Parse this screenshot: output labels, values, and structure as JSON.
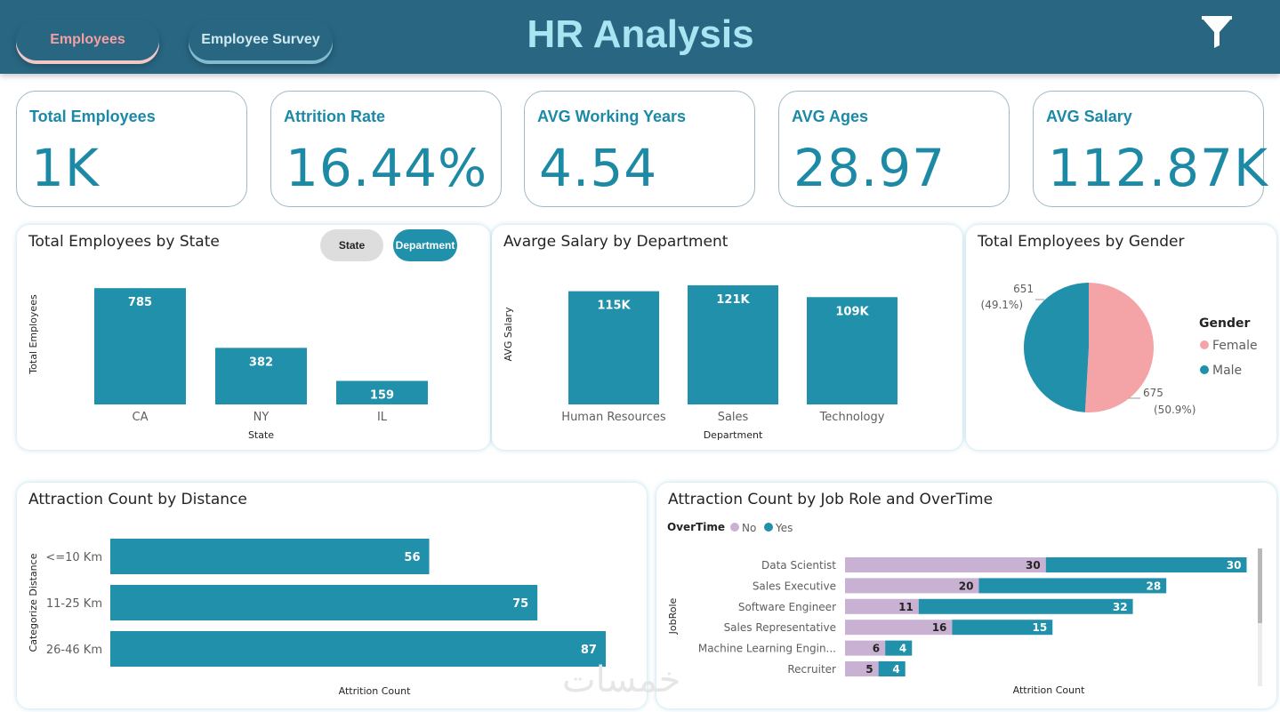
{
  "header": {
    "title": "HR Analysis",
    "nav": [
      {
        "label": "Employees",
        "active": true
      },
      {
        "label": "Employee Survey",
        "active": false
      }
    ],
    "filter_icon": "filter-icon"
  },
  "kpis": [
    {
      "title": "Total Employees",
      "value": "1K"
    },
    {
      "title": "Attrition Rate",
      "value": "16.44%"
    },
    {
      "title": "AVG Working Years",
      "value": "4.54"
    },
    {
      "title": "AVG Ages",
      "value": "28.97"
    },
    {
      "title": "AVG Salary",
      "value": "112.87K"
    }
  ],
  "toggles": {
    "state": "State",
    "department": "Department"
  },
  "colors": {
    "teal": "#2090ab",
    "lavender": "#c9b1d3",
    "pink": "#f4a4a6",
    "header": "#296682"
  },
  "chart_data": [
    {
      "type": "bar",
      "title": "Total Employees by State",
      "categories": [
        "CA",
        "NY",
        "IL"
      ],
      "values": [
        785,
        382,
        159
      ],
      "data_labels": [
        "785",
        "382",
        "159"
      ],
      "xlabel": "State",
      "ylabel": "Total Employees",
      "ylim": [
        0,
        840
      ]
    },
    {
      "type": "bar",
      "title": "Avarge Salary by Department",
      "categories": [
        "Human Resources",
        "Sales",
        "Technology"
      ],
      "values": [
        115,
        121,
        109
      ],
      "data_labels": [
        "115K",
        "121K",
        "109K"
      ],
      "xlabel": "Department",
      "ylabel": "AVG Salary",
      "ylim": [
        0,
        130
      ]
    },
    {
      "type": "pie",
      "title": "Total Employees by Gender",
      "legend_title": "Gender",
      "labels": [
        "Female",
        "Male"
      ],
      "values": [
        675,
        651
      ],
      "percent_labels": [
        "(50.9%)",
        "(49.1%)"
      ],
      "colors": [
        "#f4a4a6",
        "#2090ab"
      ]
    },
    {
      "type": "bar",
      "orientation": "horizontal",
      "title": "Attraction Count by Distance",
      "categories": [
        "<=10 Km",
        "11-25 Km",
        "26-46 Km"
      ],
      "values": [
        56,
        75,
        87
      ],
      "xlabel": "Attrition Count",
      "ylabel": "Categorize Distance",
      "xlim": [
        0,
        92
      ]
    },
    {
      "type": "bar",
      "orientation": "horizontal",
      "stacked": true,
      "title": "Attraction Count by Job Role and OverTime",
      "legend_title": "OverTime",
      "categories": [
        "Data Scientist",
        "Sales Executive",
        "Software Engineer",
        "Sales Representative",
        "Machine Learning Engin...",
        "Recruiter"
      ],
      "series": [
        {
          "name": "No",
          "color": "#c9b1d3",
          "values": [
            30,
            20,
            11,
            16,
            6,
            5
          ]
        },
        {
          "name": "Yes",
          "color": "#2090ab",
          "values": [
            30,
            28,
            32,
            15,
            4,
            4
          ]
        }
      ],
      "xlabel": "Attrition Count",
      "ylabel": "JobRole",
      "xlim": [
        0,
        61
      ]
    }
  ],
  "watermark": "خمسات"
}
